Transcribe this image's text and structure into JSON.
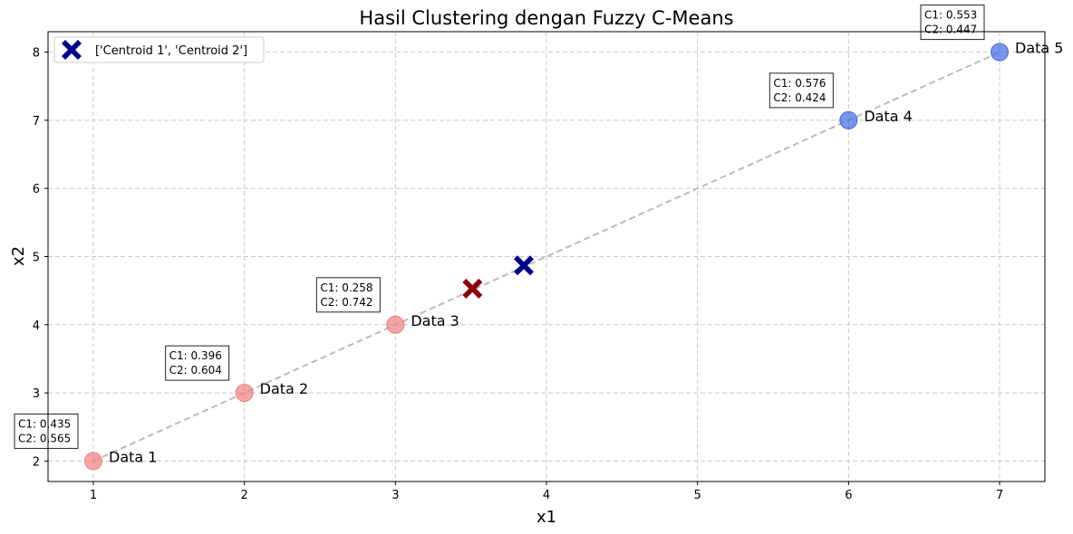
{
  "chart_data": {
    "type": "scatter",
    "title": "Hasil Clustering dengan Fuzzy C-Means",
    "xlabel": "x1",
    "ylabel": "x2",
    "xlim": [
      0.7,
      7.3
    ],
    "ylim": [
      1.7,
      8.3
    ],
    "xticks": [
      "1",
      "2",
      "3",
      "4",
      "5",
      "6",
      "7"
    ],
    "yticks": [
      "2",
      "3",
      "4",
      "5",
      "6",
      "7",
      "8"
    ],
    "grid": true,
    "legend": {
      "placement": "top-left",
      "entries": [
        "['Centroid 1', 'Centroid 2']"
      ]
    },
    "points": [
      {
        "label": "Data 1",
        "x": 1,
        "y": 2,
        "c1": "C1: 0.435",
        "c2": "C2: 0.565",
        "color": "#f08080"
      },
      {
        "label": "Data 2",
        "x": 2,
        "y": 3,
        "c1": "C1: 0.396",
        "c2": "C2: 0.604",
        "color": "#f08080"
      },
      {
        "label": "Data 3",
        "x": 3,
        "y": 4,
        "c1": "C1: 0.258",
        "c2": "C2: 0.742",
        "color": "#f08080"
      },
      {
        "label": "Data 4",
        "x": 6,
        "y": 7,
        "c1": "C1: 0.576",
        "c2": "C2: 0.424",
        "color": "#4169e1"
      },
      {
        "label": "Data 5",
        "x": 7,
        "y": 8,
        "c1": "C1: 0.553",
        "c2": "C2: 0.447",
        "color": "#4169e1"
      }
    ],
    "centroids": [
      {
        "x": 3.85,
        "y": 4.87,
        "color": "#00008b"
      },
      {
        "x": 3.51,
        "y": 4.53,
        "color": "#8b0000"
      }
    ],
    "line_color": "#bbbbbb",
    "grid_color": "#c8c8c8"
  }
}
